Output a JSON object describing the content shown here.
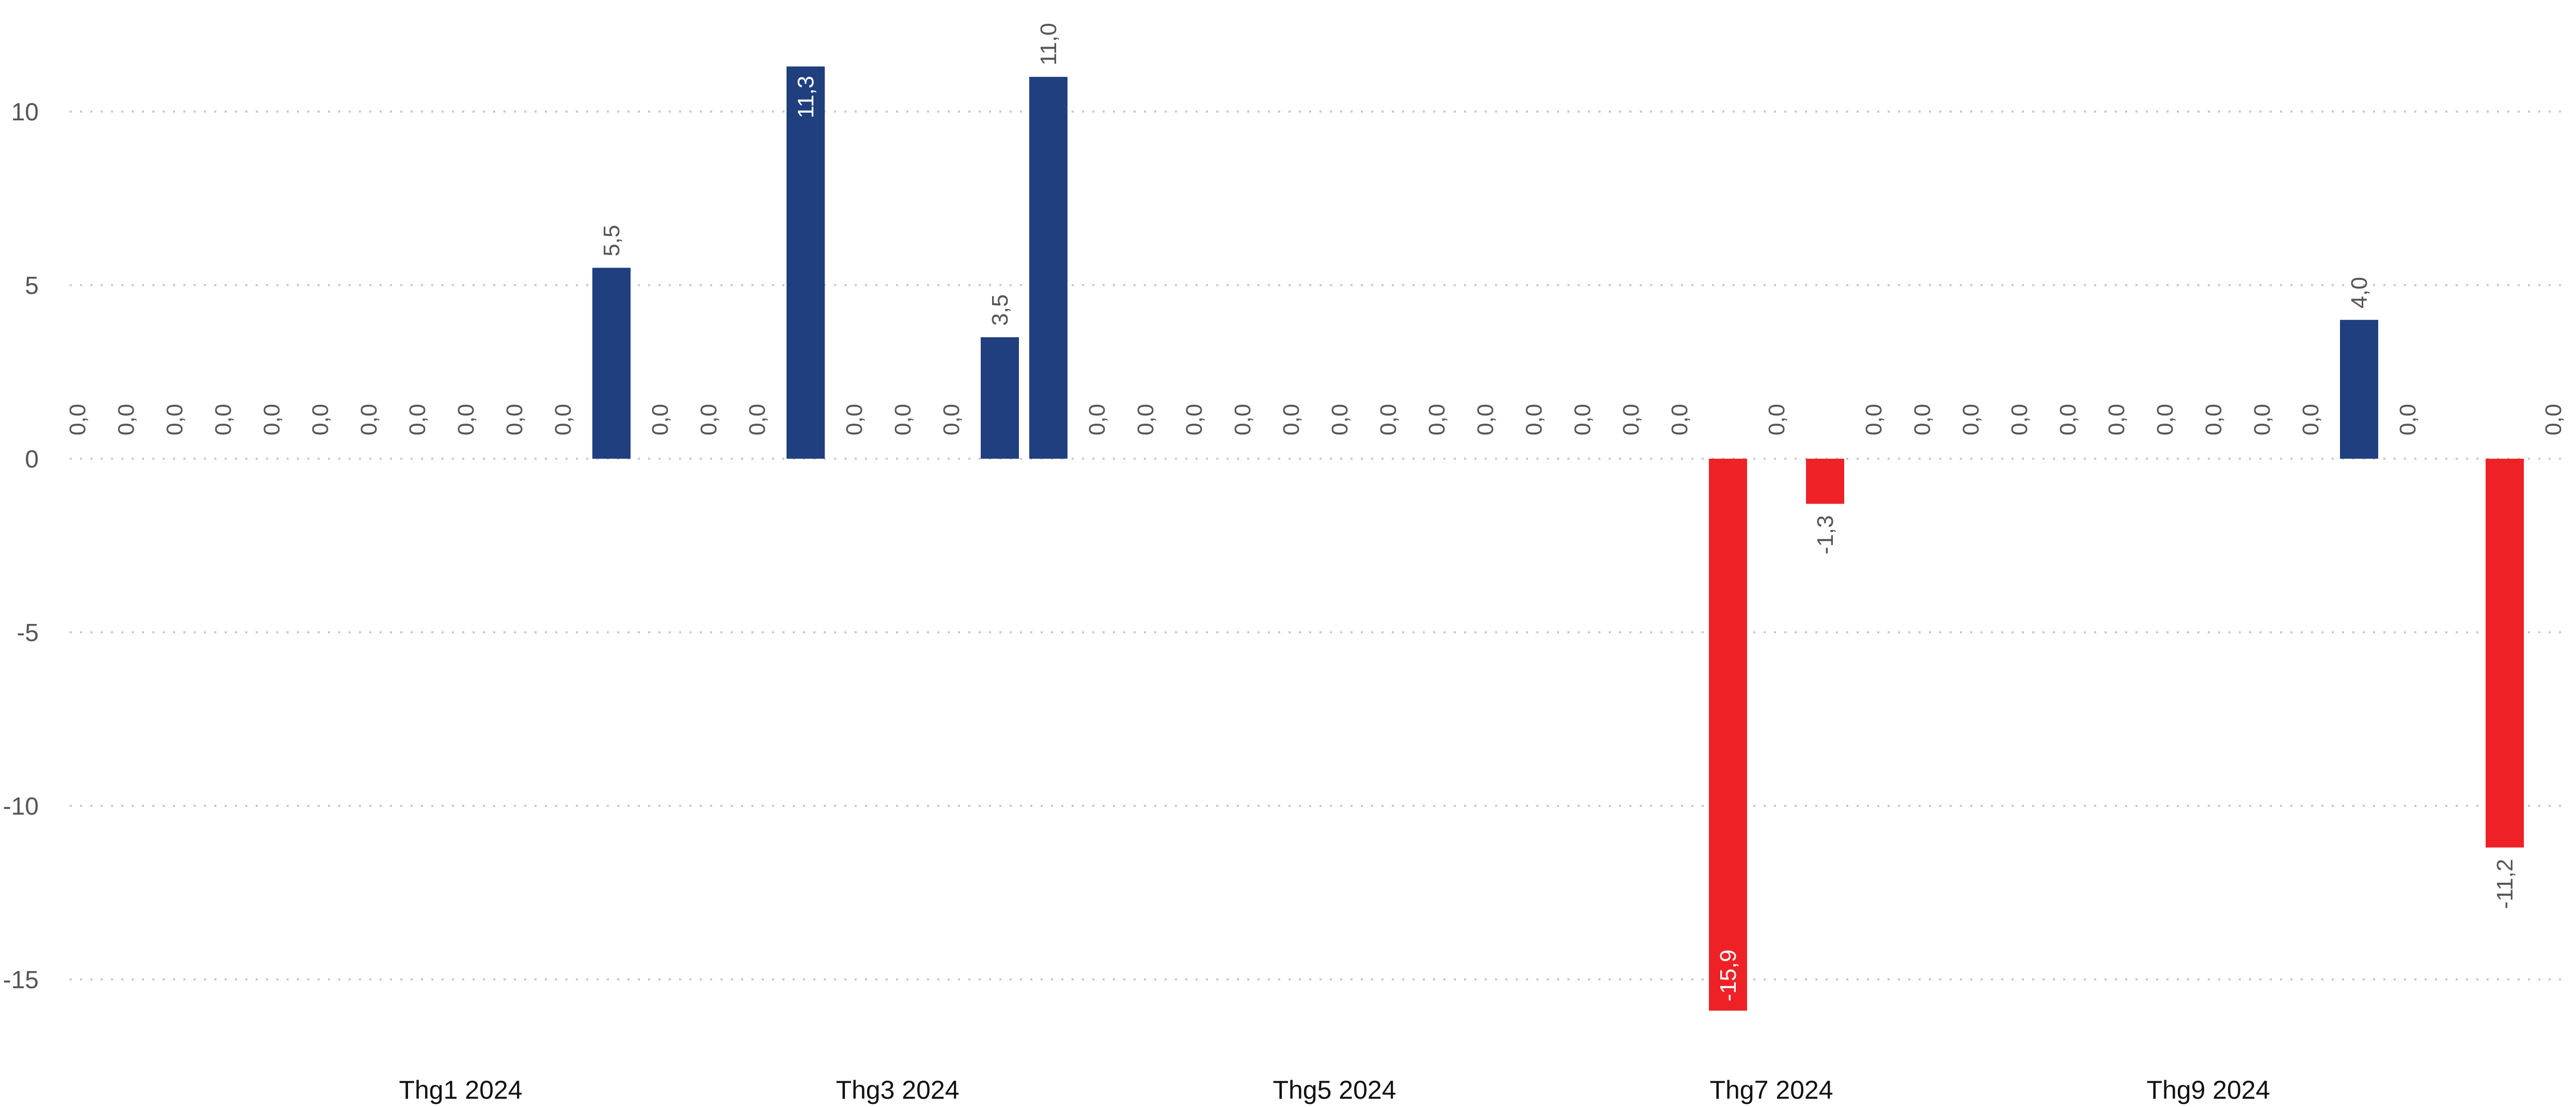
{
  "chart_data": {
    "type": "bar",
    "yticks": [
      "10",
      "5",
      "0",
      "-5",
      "-10",
      "-15"
    ],
    "ytick_values": [
      10,
      5,
      0,
      -5,
      -10,
      -15
    ],
    "ylim": [
      -16.6,
      12.1
    ],
    "x_tick_labels": [
      "Thg1 2024",
      "Thg3 2024",
      "Thg5 2024",
      "Thg7 2024",
      "Thg9 2024"
    ],
    "x_tick_weeks": [
      8,
      17,
      26,
      35,
      44
    ],
    "grid": true,
    "colors": {
      "positive": "#1f3f7f",
      "negative": "#ee2226",
      "label": "#555555",
      "label_inside": "#ffffff"
    },
    "values": [
      0,
      0,
      0,
      0,
      0,
      0,
      0,
      0,
      0,
      0,
      0,
      5.5,
      0,
      0,
      0,
      11.3,
      0,
      0,
      0,
      3.5,
      11.0,
      0,
      0,
      0,
      0,
      0,
      0,
      0,
      0,
      0,
      0,
      0,
      0,
      0,
      -15.9,
      0,
      -1.3,
      0,
      0,
      0,
      0,
      0,
      0,
      0,
      0,
      0,
      0,
      4.0,
      0,
      0,
      -11.2,
      0,
      0
    ],
    "labels": [
      "0,0",
      "0,0",
      "0,0",
      "0,0",
      "0,0",
      "0,0",
      "0,0",
      "0,0",
      "0,0",
      "0,0",
      "0,0",
      "5,5",
      "0,0",
      "0,0",
      "0,0",
      "11,3",
      "0,0",
      "0,0",
      "0,0",
      "3,5",
      "11,0",
      "0,0",
      "0,0",
      "0,0",
      "0,0",
      "0,0",
      "0,0",
      "0,0",
      "0,0",
      "0,0",
      "0,0",
      "0,0",
      "0,0",
      "0,0",
      "-15,9",
      "0,0",
      "-1,3",
      "0,0",
      "0,0",
      "0,0",
      "0,0",
      "0,0",
      "0,0",
      "0,0",
      "0,0",
      "0,0",
      "0,0",
      "4,0",
      "0,0",
      "0,0",
      "-11,2",
      "0,0",
      "0,0"
    ],
    "label_inside": [
      false,
      false,
      false,
      false,
      false,
      false,
      false,
      false,
      false,
      false,
      false,
      false,
      false,
      false,
      false,
      true,
      false,
      false,
      false,
      false,
      false,
      false,
      false,
      false,
      false,
      false,
      false,
      false,
      false,
      false,
      false,
      false,
      false,
      false,
      true,
      false,
      false,
      false,
      false,
      false,
      false,
      false,
      false,
      false,
      false,
      false,
      false,
      false,
      false,
      false,
      false,
      false,
      false
    ],
    "hidden_label": [
      false,
      false,
      false,
      false,
      false,
      false,
      false,
      false,
      false,
      false,
      false,
      false,
      false,
      false,
      false,
      false,
      false,
      false,
      false,
      false,
      false,
      false,
      false,
      false,
      false,
      false,
      false,
      false,
      false,
      false,
      false,
      false,
      false,
      false,
      false,
      false,
      false,
      false,
      false,
      false,
      false,
      false,
      false,
      false,
      false,
      false,
      false,
      false,
      false,
      true,
      false,
      false,
      false
    ]
  }
}
